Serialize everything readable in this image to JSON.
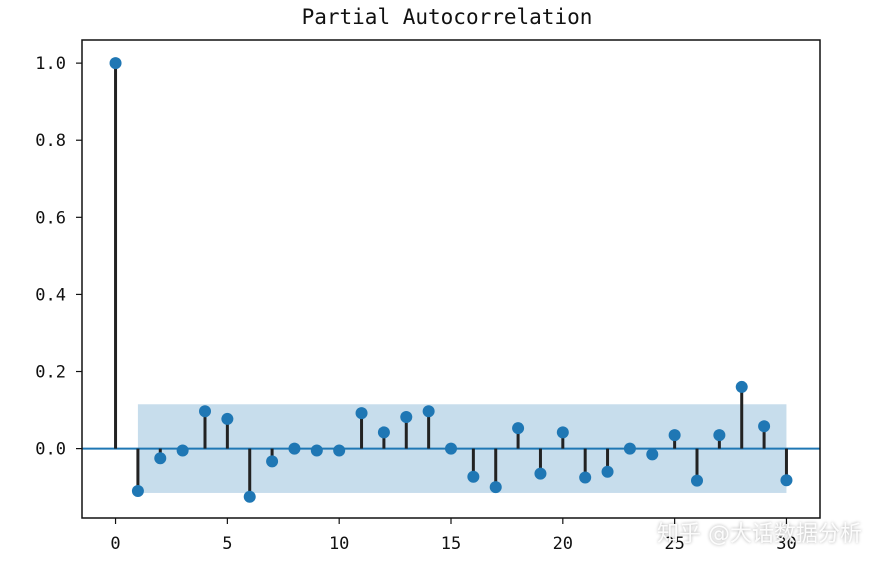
{
  "chart_data": {
    "type": "stem",
    "title": "Partial Autocorrelation",
    "x": [
      0,
      1,
      2,
      3,
      4,
      5,
      6,
      7,
      8,
      9,
      10,
      11,
      12,
      13,
      14,
      15,
      16,
      17,
      18,
      19,
      20,
      21,
      22,
      23,
      24,
      25,
      26,
      27,
      28,
      29,
      30
    ],
    "values": [
      1.0,
      -0.11,
      -0.025,
      -0.005,
      0.097,
      0.077,
      -0.125,
      -0.033,
      0.0,
      -0.005,
      -0.005,
      0.092,
      0.042,
      0.082,
      0.097,
      0.0,
      -0.073,
      -0.1,
      0.053,
      -0.065,
      0.042,
      -0.075,
      -0.06,
      0.0,
      -0.015,
      0.035,
      -0.083,
      0.035,
      0.16,
      0.058,
      -0.082
    ],
    "confidence_band": {
      "x_start": 1,
      "x_end": 30,
      "lower": -0.115,
      "upper": 0.115
    },
    "xlim": [
      -1.5,
      31.5
    ],
    "ylim": [
      -0.18,
      1.06
    ],
    "xticks": [
      0,
      5,
      10,
      15,
      20,
      25,
      30
    ],
    "yticks": [
      0.0,
      0.2,
      0.4,
      0.6,
      0.8,
      1.0
    ],
    "ytick_labels": [
      "0.0",
      "0.2",
      "0.4",
      "0.6",
      "0.8",
      "1.0"
    ],
    "xlabel": "",
    "ylabel": "",
    "grid": false,
    "colors": {
      "marker": "#1f77b4",
      "stem": "#222222",
      "band": "#1f77b4",
      "zero_line": "#1f77b4"
    }
  },
  "watermark": "知乎 @大话数据分析"
}
